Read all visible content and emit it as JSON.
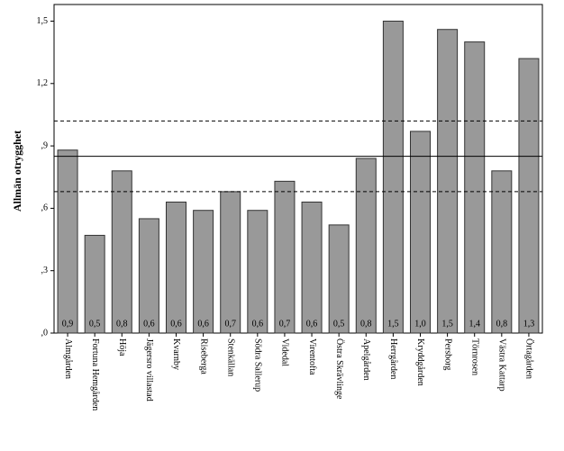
{
  "chart_data": {
    "type": "bar",
    "y_label": "Allmän otrygghet",
    "categories": [
      "Almgården",
      "Fortuna Hemgården",
      "Höja",
      "Jägersro villastad",
      "Kvarnby",
      "Riseberga",
      "Stenkällan",
      "Södra Sallerup",
      "Videdal",
      "Virentofta",
      "Östra Skrävlinge",
      "Apelgården",
      "Herrgården",
      "Kryddgården",
      "Persborg",
      "Törnrosen",
      "Västra Kattarp",
      "Örtagården"
    ],
    "values": [
      0.88,
      0.47,
      0.78,
      0.55,
      0.63,
      0.59,
      0.68,
      0.59,
      0.73,
      0.63,
      0.52,
      0.84,
      1.5,
      0.97,
      1.46,
      1.4,
      0.78,
      1.32
    ],
    "value_labels": [
      "0,9",
      "0,5",
      "0,8",
      "0,6",
      "0,6",
      "0,6",
      "0,7",
      "0,6",
      "0,7",
      "0,6",
      "0,5",
      "0,8",
      "1,5",
      "1,0",
      "1,5",
      "1,4",
      "0,8",
      "1,3"
    ],
    "color": "#999999",
    "ylim": [
      0,
      1.58
    ],
    "yticks": [
      {
        "value": 0,
        "label": ",0"
      },
      {
        "value": 0.3,
        "label": ",3"
      },
      {
        "value": 0.6,
        "label": ",6"
      },
      {
        "value": 0.9,
        "label": ",9"
      },
      {
        "value": 1.2,
        "label": "1,2"
      },
      {
        "value": 1.5,
        "label": "1,5"
      }
    ],
    "reference_lines": [
      {
        "value": 0.85,
        "style": "solid"
      },
      {
        "value": 1.02,
        "style": "dashed"
      },
      {
        "value": 0.68,
        "style": "dashed"
      }
    ]
  }
}
